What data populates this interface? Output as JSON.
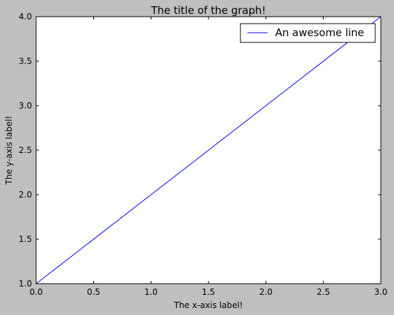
{
  "figure": {
    "background_color": "#bfbfbf",
    "plot_background_color": "#ffffff"
  },
  "chart_data": {
    "type": "line",
    "title": "The title of the graph!",
    "xlabel": "The x-axis label!",
    "ylabel": "The y-axis label!",
    "xlim": [
      0.0,
      3.0
    ],
    "ylim": [
      1.0,
      4.0
    ],
    "xticks": [
      "0.0",
      "0.5",
      "1.0",
      "1.5",
      "2.0",
      "2.5",
      "3.0"
    ],
    "yticks": [
      "1.0",
      "1.5",
      "2.0",
      "2.5",
      "3.0",
      "3.5",
      "4.0"
    ],
    "grid": false,
    "legend_position": "top-right",
    "series": [
      {
        "name": "An awesome line",
        "color": "#0000ff",
        "x": [
          0,
          1,
          2,
          3
        ],
        "y": [
          1,
          2,
          3,
          4
        ]
      }
    ]
  }
}
